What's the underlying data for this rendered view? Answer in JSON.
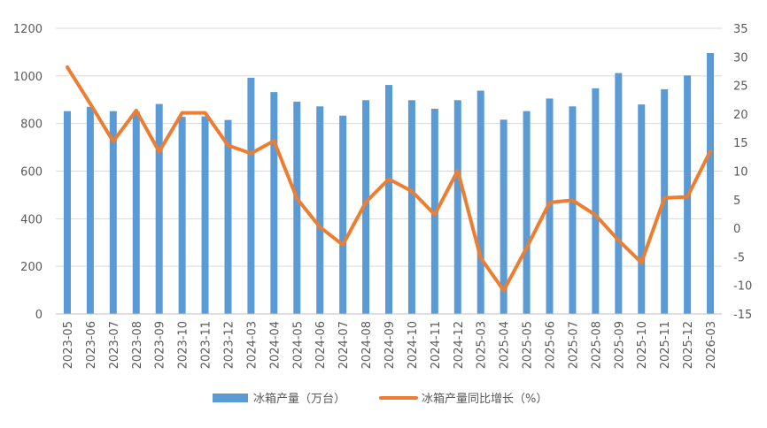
{
  "colors": {
    "bar": "#5b9bd5",
    "line": "#ed7d31",
    "axis": "#d9d9d9",
    "text": "#595959"
  },
  "legend": {
    "bar_label": "冰箱产量（万台）",
    "line_label": "冰箱产量同比增长（%）"
  },
  "chart_data": {
    "type": "bar",
    "categories": [
      "2023-05",
      "2023-06",
      "2023-07",
      "2023-08",
      "2023-09",
      "2023-10",
      "2023-11",
      "2023-12",
      "2024-03",
      "2024-04",
      "2024-05",
      "2024-06",
      "2024-07",
      "2024-08",
      "2024-09",
      "2024-10",
      "2024-11",
      "2024-12",
      "2025-03",
      "2025-04",
      "2025-05",
      "2025-06",
      "2025-07",
      "2025-08",
      "2025-09",
      "2025-10",
      "2025-11",
      "2025-12",
      "2026-03"
    ],
    "series": [
      {
        "name": "冰箱产量（万台）",
        "type": "bar",
        "axis": "left",
        "values": [
          852,
          870,
          852,
          850,
          882,
          828,
          830,
          815,
          992,
          932,
          892,
          872,
          833,
          898,
          962,
          898,
          862,
          898,
          938,
          816,
          852,
          905,
          872,
          948,
          1012,
          880,
          944,
          1002,
          1096
        ]
      },
      {
        "name": "冰箱产量同比增长（%）",
        "type": "line",
        "axis": "right",
        "values": [
          28.2,
          21.8,
          15.2,
          20.6,
          13.4,
          20.2,
          20.2,
          14.5,
          13.1,
          15.3,
          5.2,
          0.2,
          -2.9,
          4.6,
          8.6,
          6.5,
          2.4,
          10.1,
          -5.2,
          -10.9,
          -3.4,
          4.5,
          4.9,
          2.3,
          -2.1,
          -6.0,
          5.3,
          5.5,
          13.5
        ]
      }
    ],
    "y_left": {
      "lim": [
        0,
        1200
      ],
      "ticks": [
        0,
        200,
        400,
        600,
        800,
        1000,
        1200
      ]
    },
    "y_right": {
      "lim": [
        -15,
        35
      ],
      "ticks": [
        -15,
        -10,
        -5,
        0,
        5,
        10,
        15,
        20,
        25,
        30,
        35
      ]
    },
    "grid": true,
    "legend_position": "bottom"
  }
}
